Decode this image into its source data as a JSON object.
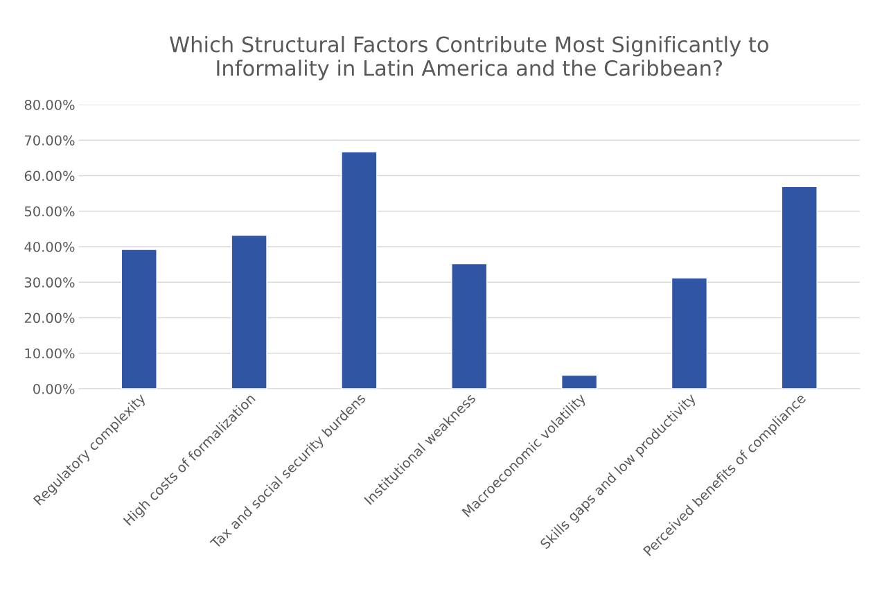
{
  "chart_data": {
    "type": "bar",
    "title": "Which Structural Factors Contribute Most Significantly to\nInformality in Latin America and the Caribbean?",
    "categories": [
      "Regulatory complexity",
      "High costs of formalization",
      "Tax and social security burdens",
      "Institutional weakness",
      "Macroeconomic volatility",
      "Skills gaps and low productivity",
      "Perceived benefits of compliance"
    ],
    "values": [
      39.2,
      43.2,
      66.7,
      35.2,
      3.8,
      31.2,
      56.9
    ],
    "color": "#2f55a4",
    "ylim": [
      0,
      80
    ],
    "yticks": [
      {
        "value": 0,
        "label": "0.00%"
      },
      {
        "value": 10,
        "label": "10.00%"
      },
      {
        "value": 20,
        "label": "20.00%"
      },
      {
        "value": 30,
        "label": "30.00%"
      },
      {
        "value": 40,
        "label": "40.00%"
      },
      {
        "value": 50,
        "label": "50.00%"
      },
      {
        "value": 60,
        "label": "60.00%"
      },
      {
        "value": 70,
        "label": "70.00%"
      },
      {
        "value": 80,
        "label": "80.00%"
      }
    ],
    "grid": "y"
  }
}
